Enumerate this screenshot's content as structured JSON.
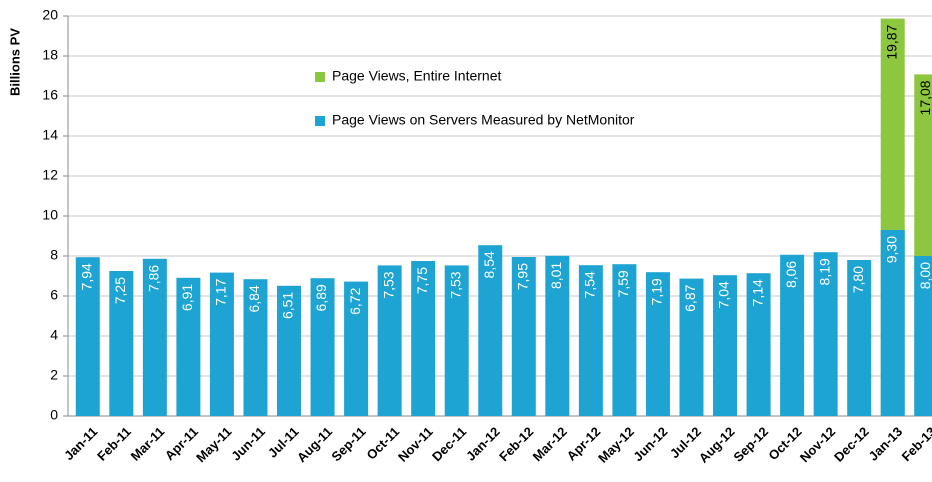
{
  "chart_data": {
    "type": "bar",
    "y_label": "Billions PV",
    "categories": [
      "Jan-11",
      "Feb-11",
      "Mar-11",
      "Apr-11",
      "May-11",
      "Jun-11",
      "Jul-11",
      "Aug-11",
      "Sep-11",
      "Oct-11",
      "Nov-11",
      "Dec-11",
      "Jan-12",
      "Feb-12",
      "Mar-12",
      "Apr-12",
      "May-12",
      "Jun-12",
      "Jul-12",
      "Aug-12",
      "Sep-12",
      "Oct-12",
      "Nov-12",
      "Dec-12",
      "Jan-13",
      "Feb-13"
    ],
    "series": [
      {
        "name": "Page Views, Entire  Internet",
        "color": "#8dc63f",
        "values": [
          null,
          null,
          null,
          null,
          null,
          null,
          null,
          null,
          null,
          null,
          null,
          null,
          null,
          null,
          null,
          null,
          null,
          null,
          null,
          null,
          null,
          null,
          null,
          null,
          19.87,
          17.08
        ],
        "value_labels": [
          null,
          null,
          null,
          null,
          null,
          null,
          null,
          null,
          null,
          null,
          null,
          null,
          null,
          null,
          null,
          null,
          null,
          null,
          null,
          null,
          null,
          null,
          null,
          null,
          "19,87",
          "17,08"
        ]
      },
      {
        "name": "Page Views on Servers Measured by NetMonitor",
        "color": "#1ea4d2",
        "values": [
          7.94,
          7.25,
          7.86,
          6.91,
          7.17,
          6.84,
          6.51,
          6.89,
          6.72,
          7.53,
          7.75,
          7.53,
          8.54,
          7.95,
          8.01,
          7.54,
          7.59,
          7.19,
          6.87,
          7.04,
          7.14,
          8.06,
          8.19,
          7.8,
          9.3,
          8.0
        ],
        "value_labels": [
          "7,94",
          "7,25",
          "7,86",
          "6,91",
          "7,17",
          "6,84",
          "6,51",
          "6,89",
          "6,72",
          "7,53",
          "7,75",
          "7,53",
          "8,54",
          "7,95",
          "8,01",
          "7,54",
          "7,59",
          "7,19",
          "6,87",
          "7,04",
          "7,14",
          "8,06",
          "8,19",
          "7,80",
          "9,30",
          "8,00"
        ]
      }
    ],
    "ylim": [
      0,
      20
    ],
    "yticks": [
      0,
      2,
      4,
      6,
      8,
      10,
      12,
      14,
      16,
      18,
      20
    ],
    "grid": true
  }
}
